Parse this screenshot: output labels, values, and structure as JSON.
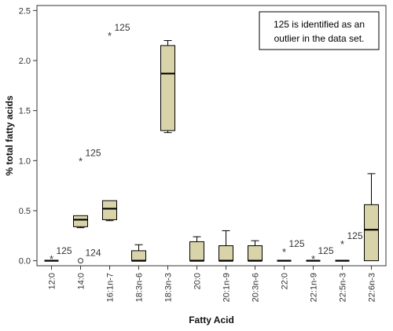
{
  "chart_data": {
    "type": "box",
    "title": "",
    "xlabel": "Fatty Acid",
    "ylabel": "% total fatty acids",
    "ylim": [
      -0.05,
      2.55
    ],
    "yticks": [
      "0.0",
      "0.5",
      "1.0",
      "1.5",
      "2.0",
      "2.5"
    ],
    "grid": false,
    "colors": {
      "box_fill": "#d9d3a9",
      "stroke": "#000000"
    },
    "note": "125 is identified as an outlier in the data set.",
    "categories": [
      "12:0",
      "14:0",
      "16:1n-7",
      "18:3n-6",
      "18:3n-3",
      "20:0",
      "20:1n-9",
      "20:3n-6",
      "22:0",
      "22:1n-9",
      "22:5n-3",
      "22:6n-3"
    ],
    "boxes": [
      {
        "category": "12:0",
        "min": 0,
        "q1": 0,
        "median": 0,
        "q3": 0,
        "max": 0
      },
      {
        "category": "14:0",
        "min": 0.33,
        "q1": 0.34,
        "median": 0.41,
        "q3": 0.45,
        "max": 0.45
      },
      {
        "category": "16:1n-7",
        "min": 0.4,
        "q1": 0.41,
        "median": 0.52,
        "q3": 0.6,
        "max": 0.6
      },
      {
        "category": "18:3n-6",
        "min": 0,
        "q1": 0,
        "median": 0,
        "q3": 0.1,
        "max": 0.16
      },
      {
        "category": "18:3n-3",
        "min": 1.28,
        "q1": 1.3,
        "median": 1.87,
        "q3": 2.15,
        "max": 2.2
      },
      {
        "category": "20:0",
        "min": 0,
        "q1": 0,
        "median": 0,
        "q3": 0.19,
        "max": 0.24
      },
      {
        "category": "20:1n-9",
        "min": 0,
        "q1": 0,
        "median": 0,
        "q3": 0.15,
        "max": 0.3
      },
      {
        "category": "20:3n-6",
        "min": 0,
        "q1": 0,
        "median": 0,
        "q3": 0.15,
        "max": 0.2
      },
      {
        "category": "22:0",
        "min": 0,
        "q1": 0,
        "median": 0,
        "q3": 0,
        "max": 0
      },
      {
        "category": "22:1n-9",
        "min": 0,
        "q1": 0,
        "median": 0,
        "q3": 0,
        "max": 0
      },
      {
        "category": "22:5n-3",
        "min": 0,
        "q1": 0,
        "median": 0,
        "q3": 0,
        "max": 0
      },
      {
        "category": "22:6n-3",
        "min": 0,
        "q1": 0,
        "median": 0.31,
        "q3": 0.56,
        "max": 0.87
      }
    ],
    "outliers": [
      {
        "category": "12:0",
        "value": 0.02,
        "marker": "star",
        "label": "125"
      },
      {
        "category": "14:0",
        "value": 1.0,
        "marker": "star",
        "label": "125"
      },
      {
        "category": "14:0",
        "value": 0.0,
        "marker": "circle",
        "label": "124"
      },
      {
        "category": "16:1n-7",
        "value": 2.25,
        "marker": "star",
        "label": "125"
      },
      {
        "category": "22:0",
        "value": 0.09,
        "marker": "star",
        "label": "125"
      },
      {
        "category": "22:1n-9",
        "value": 0.02,
        "marker": "star",
        "label": "125"
      },
      {
        "category": "22:5n-3",
        "value": 0.17,
        "marker": "star",
        "label": "125"
      }
    ]
  }
}
